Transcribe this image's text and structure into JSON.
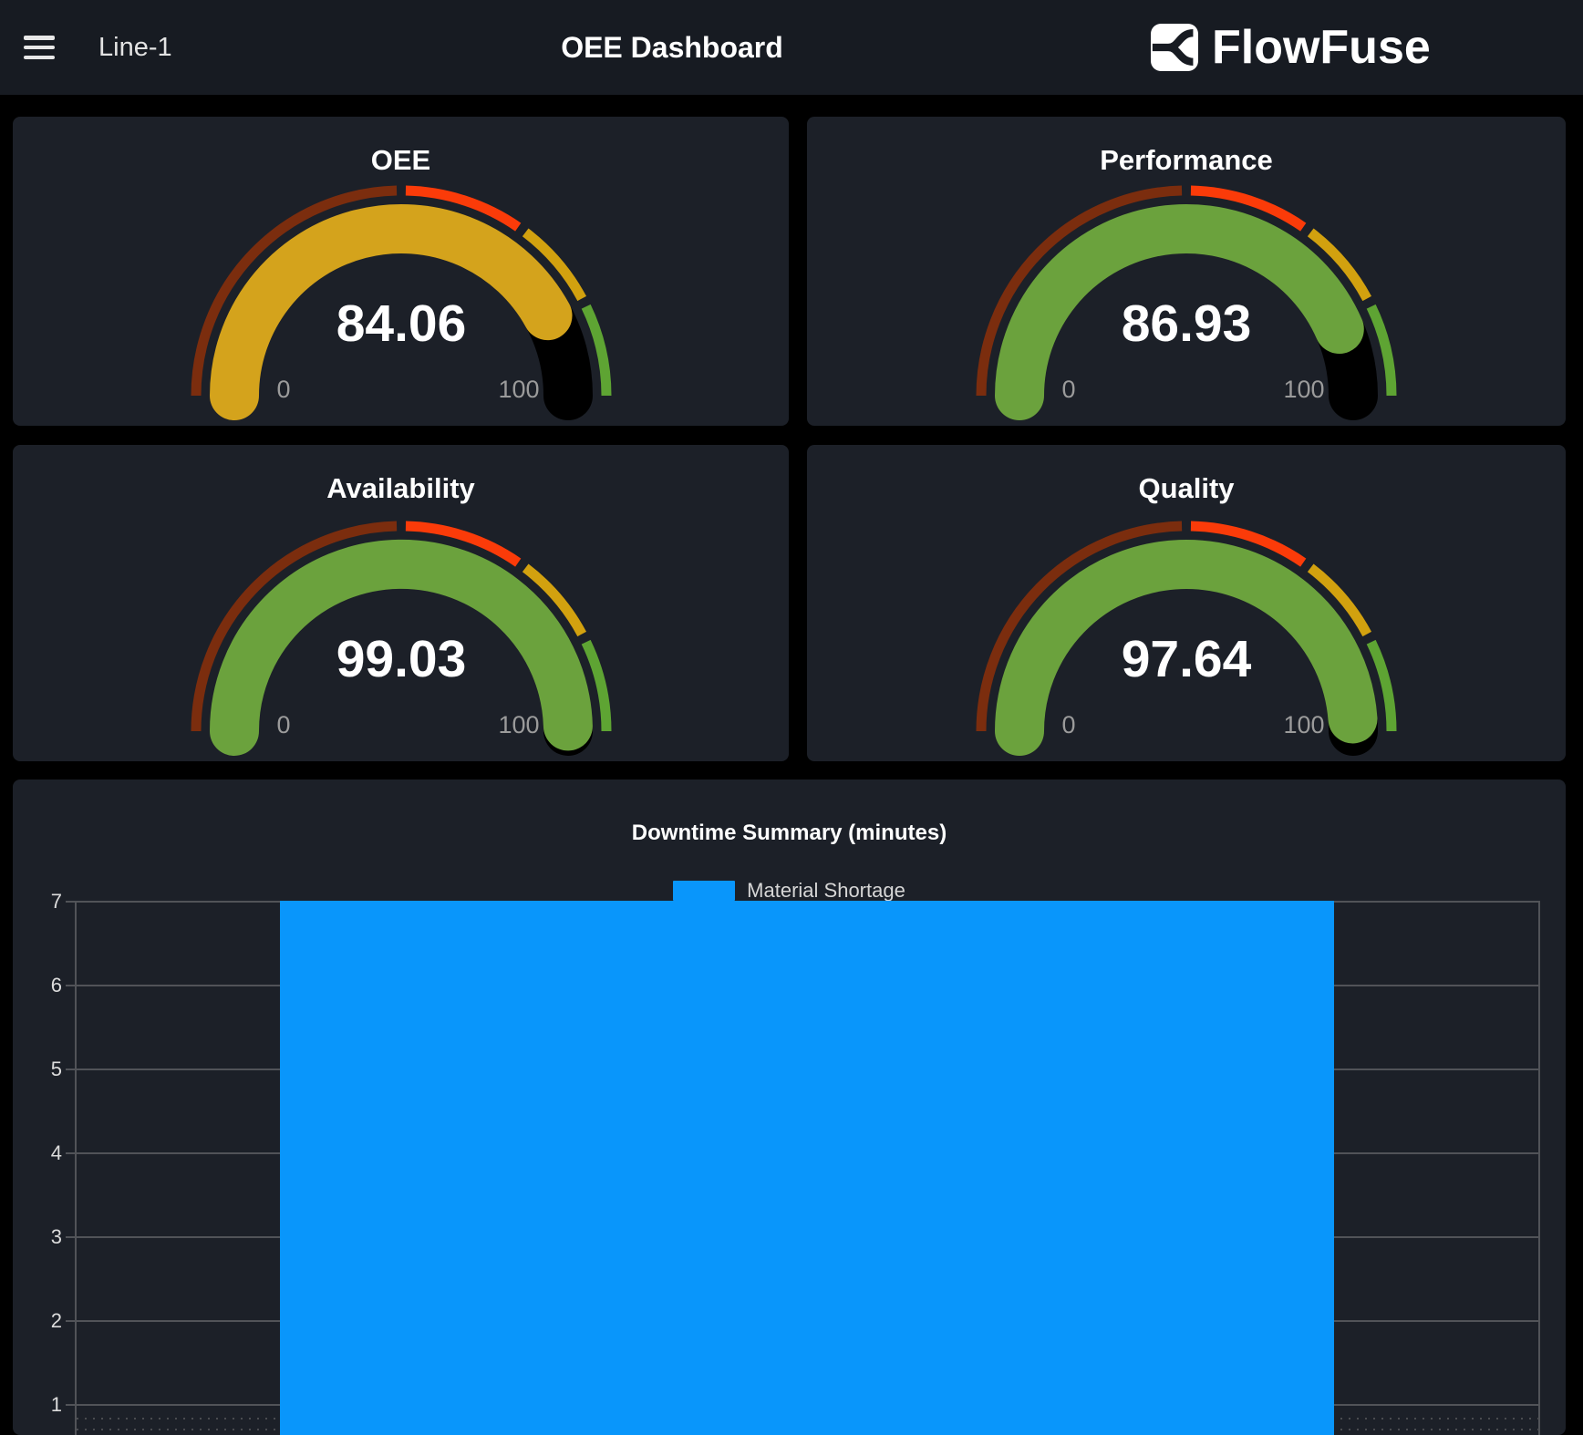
{
  "header": {
    "device_name": "Line-1",
    "page_title": "OEE Dashboard",
    "brand_name": "FlowFuse"
  },
  "colors": {
    "page_background": "#000000",
    "header_background": "#171b22",
    "card_background": "#1c2028",
    "bar_blue": "#0996fb",
    "gauge_gold": "#d4a31c",
    "gauge_green": "#6ba23d",
    "zone_dark_red": "#7b2d0e",
    "zone_red": "#fb3b09",
    "zone_yellow": "#d2a10f",
    "zone_green": "#5ea433",
    "gridline": "#515358"
  },
  "chart_data": [
    {
      "type": "gauge",
      "title": "OEE",
      "value": 84.06,
      "min": 0,
      "max": 100,
      "value_color": "#d4a31c",
      "zones": [
        {
          "from": 0,
          "to": 50,
          "color": "#7b2d0e"
        },
        {
          "from": 50,
          "to": 70,
          "color": "#fb3b09"
        },
        {
          "from": 70,
          "to": 85,
          "color": "#d2a10f"
        },
        {
          "from": 85,
          "to": 100,
          "color": "#5ea433"
        }
      ]
    },
    {
      "type": "gauge",
      "title": "Performance",
      "value": 86.93,
      "min": 0,
      "max": 100,
      "value_color": "#6ba23d",
      "zones": [
        {
          "from": 0,
          "to": 50,
          "color": "#7b2d0e"
        },
        {
          "from": 50,
          "to": 70,
          "color": "#fb3b09"
        },
        {
          "from": 70,
          "to": 85,
          "color": "#d2a10f"
        },
        {
          "from": 85,
          "to": 100,
          "color": "#5ea433"
        }
      ]
    },
    {
      "type": "gauge",
      "title": "Availability",
      "value": 99.03,
      "min": 0,
      "max": 100,
      "value_color": "#6ba23d",
      "zones": [
        {
          "from": 0,
          "to": 50,
          "color": "#7b2d0e"
        },
        {
          "from": 50,
          "to": 70,
          "color": "#fb3b09"
        },
        {
          "from": 70,
          "to": 85,
          "color": "#d2a10f"
        },
        {
          "from": 85,
          "to": 100,
          "color": "#5ea433"
        }
      ]
    },
    {
      "type": "gauge",
      "title": "Quality",
      "value": 97.64,
      "min": 0,
      "max": 100,
      "value_color": "#6ba23d",
      "zones": [
        {
          "from": 0,
          "to": 50,
          "color": "#7b2d0e"
        },
        {
          "from": 50,
          "to": 70,
          "color": "#fb3b09"
        },
        {
          "from": 70,
          "to": 85,
          "color": "#d2a10f"
        },
        {
          "from": 85,
          "to": 100,
          "color": "#5ea433"
        }
      ]
    },
    {
      "type": "bar",
      "title": "Downtime Summary (minutes)",
      "legend": [
        {
          "label": "Material Shortage",
          "color": "#0996fb"
        }
      ],
      "categories": [
        "Material Shortage"
      ],
      "values": [
        7
      ],
      "bar_color": "#0996fb",
      "ylim": [
        0,
        7
      ],
      "yticks": [
        1,
        2,
        3,
        4,
        5,
        6,
        7
      ],
      "grid": true,
      "legend_position": "top"
    }
  ]
}
